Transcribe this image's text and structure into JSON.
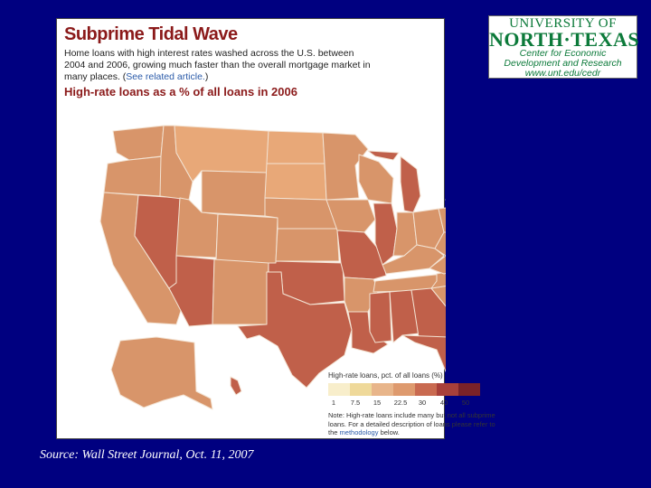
{
  "card": {
    "title": "Subprime Tidal Wave",
    "lead": "Home loans with high interest rates washed across the U.S. between 2004 and 2006, growing much faster than the overall mortgage market in many places. (",
    "lead_link": "See related article.",
    "lead_end": ")",
    "subtitle": "High-rate loans as a % of all loans in 2006"
  },
  "legend": {
    "title": "High-rate loans, pct. of all loans (%)",
    "ticks": [
      "1",
      "7.5",
      "15",
      "22.5",
      "30",
      "40",
      "50"
    ],
    "colors": [
      "#f8eecb",
      "#efd99a",
      "#e8b58a",
      "#de9a6e",
      "#c96a50",
      "#a8403a",
      "#7a2228"
    ],
    "note_pre": "Note: High-rate loans include many but not all subprime loans. For a detailed description of loans please refer to the",
    "note_link": "methodology",
    "note_post": "below."
  },
  "logo": {
    "line1": "UNIVERSITY OF",
    "line2": "NORTH·TEXAS",
    "line3": "Center for Economic",
    "line4": "Development and Research",
    "line5": "www.unt.edu/cedr"
  },
  "source": "Source:  Wall Street Journal, Oct. 11, 2007",
  "map_colors": {
    "low": "#e8a878",
    "mid": "#d8956a",
    "high": "#c0604a",
    "border": "#f3e3d3"
  }
}
